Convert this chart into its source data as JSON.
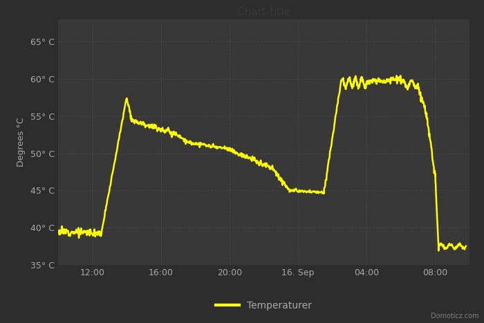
{
  "title": "Chart title",
  "ylabel": "Degrees °C",
  "background_color": "#2d2d2d",
  "plot_bg_color": "#383838",
  "grid_color": "#4a4a4a",
  "line_color": "#ffff00",
  "text_color": "#aaaaaa",
  "title_color": "#3a3a3a",
  "ylim": [
    35,
    68
  ],
  "yticks": [
    35,
    40,
    45,
    50,
    55,
    60,
    65
  ],
  "ytick_labels": [
    "35° C",
    "40° C",
    "45° C",
    "50° C",
    "55° C",
    "60° C",
    "65° C"
  ],
  "xtick_positions": [
    2,
    6,
    10,
    14,
    18,
    22
  ],
  "xtick_labels": [
    "12:00",
    "16:00",
    "20:00",
    "16. Sep",
    "04:00",
    "08:00"
  ],
  "xlim": [
    0,
    24
  ],
  "watermark": "Domoticz.com",
  "legend_label": "Temperaturer"
}
